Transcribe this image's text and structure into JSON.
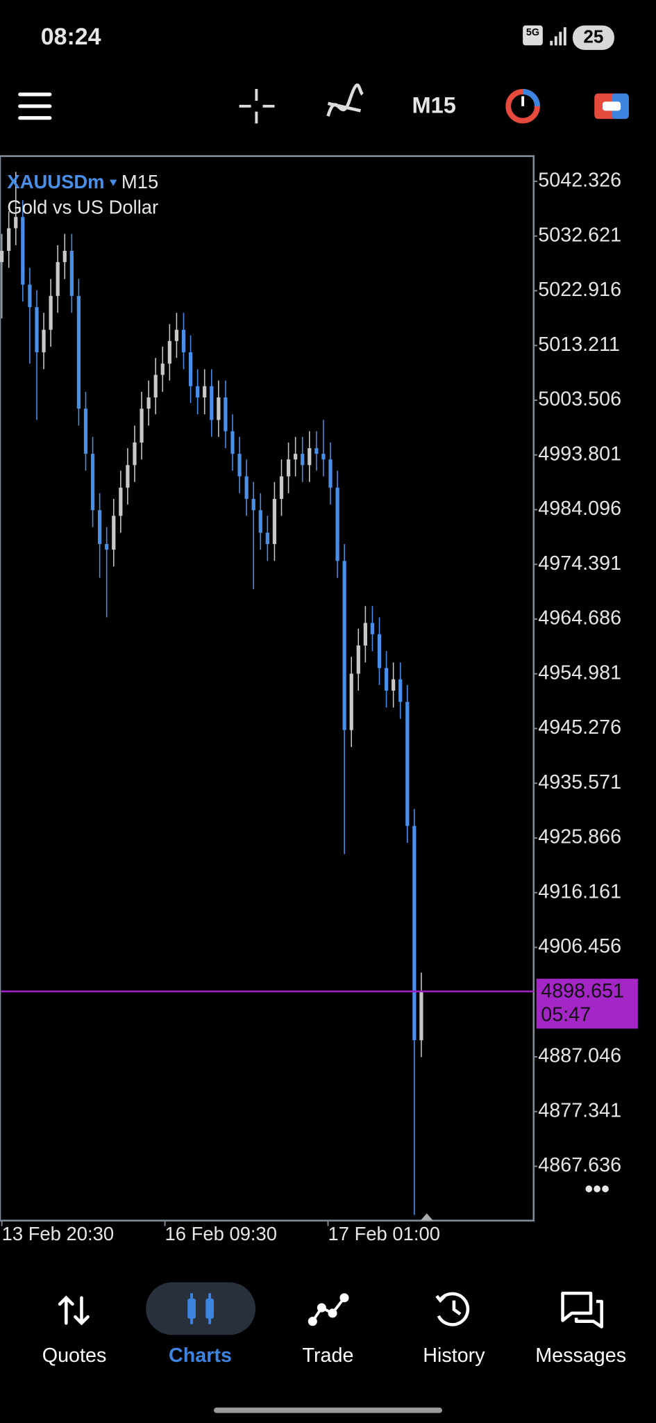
{
  "status_bar": {
    "time": "08:24",
    "network": "5G",
    "battery": "25"
  },
  "toolbar": {
    "timeframe": "M15"
  },
  "chart": {
    "symbol": "XAUUSDm",
    "timeframe": "M15",
    "description": "Gold vs US Dollar",
    "ylim": [
      4858.0,
      5046.8
    ],
    "yticks": [
      5042.326,
      5032.621,
      5022.916,
      5013.211,
      5003.506,
      4993.801,
      4984.096,
      4974.391,
      4964.686,
      4954.981,
      4945.276,
      4935.571,
      4925.866,
      4916.161,
      4906.456,
      4887.046,
      4877.341,
      4867.636
    ],
    "current_price": 4898.651,
    "countdown": "05:47",
    "xlabels": [
      "13 Feb 20:30",
      "16 Feb 09:30",
      "17 Feb 01:00"
    ],
    "candles": {
      "open": [
        5028,
        5030,
        5034,
        5036,
        5024,
        5020,
        5012,
        5016,
        5022,
        5028,
        5030,
        5022,
        5002,
        4994,
        4984,
        4978,
        4977,
        4983,
        4988,
        4992,
        4996,
        5002,
        5004,
        5008,
        5010,
        5014,
        5016,
        5012,
        5006,
        5004,
        5006,
        5000,
        5004,
        4998,
        4994,
        4990,
        4986,
        4984,
        4980,
        4978,
        4986,
        4990,
        4993,
        4994,
        4992,
        4995,
        4994,
        4993,
        4988,
        4975,
        4945,
        4955,
        4960,
        4964,
        4962,
        4956,
        4952,
        4954,
        4950,
        4928,
        4890
      ],
      "high": [
        5033,
        5037,
        5044,
        5039,
        5027,
        5023,
        5019,
        5025,
        5031,
        5033,
        5033,
        5025,
        5005,
        4997,
        4987,
        4981,
        4986,
        4991,
        4995,
        4999,
        5005,
        5007,
        5011,
        5013,
        5017,
        5019,
        5019,
        5015,
        5009,
        5009,
        5009,
        5007,
        5007,
        5001,
        4997,
        4993,
        4989,
        4987,
        4983,
        4989,
        4993,
        4996,
        4997,
        4997,
        4998,
        4998,
        5000,
        4996,
        4991,
        4978,
        4958,
        4963,
        4967,
        4967,
        4965,
        4959,
        4957,
        4957,
        4953,
        4931,
        4902
      ],
      "low": [
        5018,
        5027,
        5031,
        5021,
        5010,
        5000,
        5009,
        5013,
        5019,
        5025,
        5019,
        4999,
        4991,
        4981,
        4972,
        4965,
        4974,
        4980,
        4985,
        4989,
        4993,
        4999,
        5001,
        5005,
        5007,
        5011,
        5009,
        5003,
        5001,
        5001,
        4997,
        4997,
        4995,
        4991,
        4987,
        4983,
        4970,
        4977,
        4975,
        4975,
        4983,
        4987,
        4990,
        4989,
        4989,
        4991,
        4990,
        4985,
        4972,
        4923,
        4942,
        4952,
        4957,
        4959,
        4953,
        4949,
        4949,
        4947,
        4925,
        4859,
        4887
      ],
      "close": [
        5030,
        5034,
        5036,
        5024,
        5020,
        5012,
        5016,
        5022,
        5028,
        5030,
        5022,
        5002,
        4994,
        4984,
        4978,
        4977,
        4983,
        4988,
        4992,
        4996,
        5002,
        5004,
        5008,
        5010,
        5014,
        5016,
        5012,
        5006,
        5004,
        5006,
        5000,
        5004,
        4998,
        4994,
        4990,
        4986,
        4984,
        4980,
        4978,
        4986,
        4990,
        4993,
        4994,
        4992,
        4995,
        4994,
        4993,
        4988,
        4975,
        4945,
        4955,
        4960,
        4964,
        4962,
        4956,
        4952,
        4954,
        4950,
        4928,
        4890,
        4898.651
      ]
    }
  },
  "nav": [
    "Quotes",
    "Charts",
    "Trade",
    "History",
    "Messages"
  ]
}
